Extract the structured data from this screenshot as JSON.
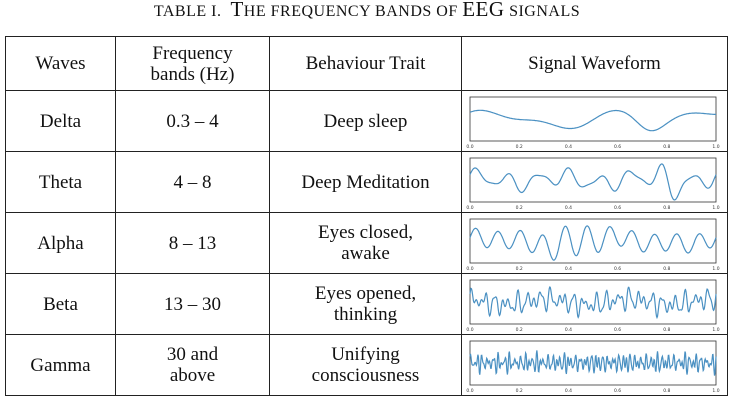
{
  "caption": {
    "label": "TABLE I.",
    "first_letter": "T",
    "text_1": "HE FREQUENCY BANDS OF",
    "text_2": "EEG",
    "text_3": "SIGNALS"
  },
  "table": {
    "headers": {
      "waves": "Waves",
      "frequency_line1": "Frequency",
      "frequency_line2": "bands (Hz)",
      "behaviour": "Behaviour Trait",
      "waveform": "Signal Waveform"
    },
    "rows": [
      {
        "wave": "Delta",
        "freq_line1": "0.3 – 4",
        "freq_line2": "",
        "trait_line1": "Deep sleep",
        "trait_line2": ""
      },
      {
        "wave": "Theta",
        "freq_line1": "4 – 8",
        "freq_line2": "",
        "trait_line1": "Deep Meditation",
        "trait_line2": ""
      },
      {
        "wave": "Alpha",
        "freq_line1": "8 – 13",
        "freq_line2": "",
        "trait_line1": "Eyes closed,",
        "trait_line2": "awake"
      },
      {
        "wave": "Beta",
        "freq_line1": "13 – 30",
        "freq_line2": "",
        "trait_line1": "Eyes opened,",
        "trait_line2": "thinking"
      },
      {
        "wave": "Gamma",
        "freq_line1": "30 and",
        "freq_line2": "above",
        "trait_line1": "Unifying",
        "trait_line2": "consciousness"
      }
    ],
    "waveform_ticks": [
      "0.0",
      "0.2",
      "0.4",
      "0.6",
      "0.8",
      "1.0"
    ],
    "waveform_color": "#4a90c2"
  }
}
